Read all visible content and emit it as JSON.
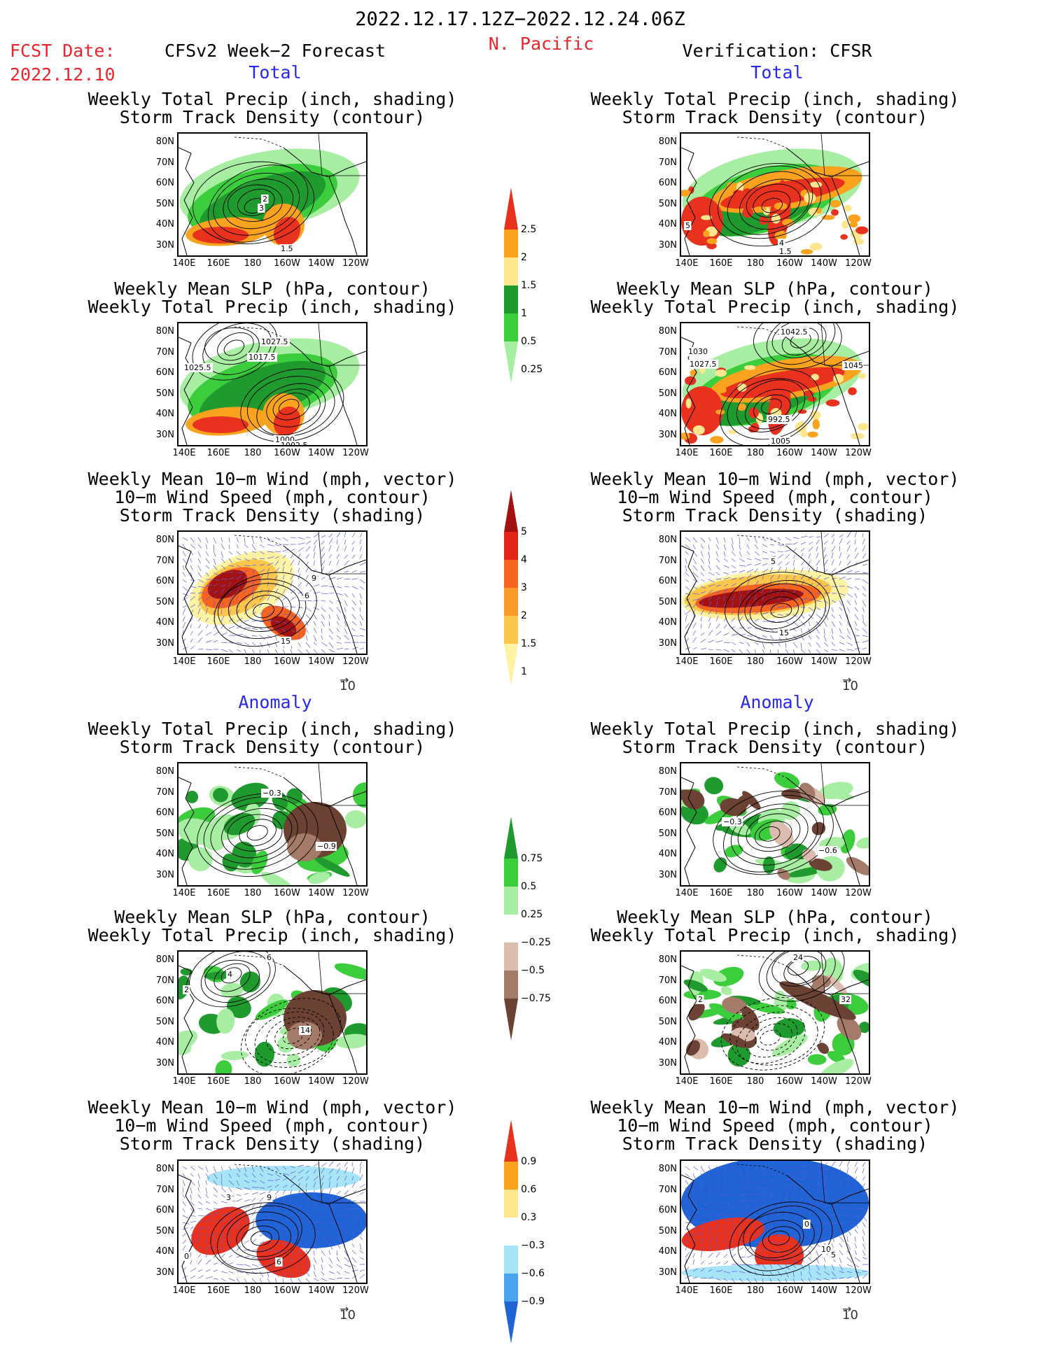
{
  "header": {
    "date_range": "2022.12.17.12Z−2022.12.24.06Z",
    "region": "N. Pacific",
    "fcst_label": "FCST Date:",
    "fcst_date": "2022.12.10",
    "forecast_title": "CFSv2 Week−2 Forecast",
    "verification_title": "Verification: CFSR"
  },
  "sections": {
    "total": "Total",
    "anomaly": "Anomaly"
  },
  "panel_titles": {
    "precip_storm": [
      "Weekly Total Precip (inch, shading)",
      "Storm Track Density (contour)"
    ],
    "slp_precip": [
      "Weekly Mean SLP (hPa, contour)",
      "Weekly Total Precip (inch, shading)"
    ],
    "wind_storm": [
      "Weekly Mean 10−m Wind (mph, vector)",
      "10−m Wind Speed (mph, contour)",
      "Storm Track Density (shading)"
    ]
  },
  "axes": {
    "lat": [
      "80N",
      "70N",
      "60N",
      "50N",
      "40N",
      "30N"
    ],
    "lon": [
      "140E",
      "160E",
      "180",
      "160W",
      "140W",
      "120W"
    ]
  },
  "vector_ref": "10",
  "colorbars": {
    "precip_total": {
      "labels": [
        "2.5",
        "2",
        "1.5",
        "1",
        "0.5",
        "0.25"
      ],
      "colors": [
        "#e8321e",
        "#fba31f",
        "#fde68e",
        "#1f9a2e",
        "#3ccd3c",
        "#a7eea3"
      ]
    },
    "storm_total": {
      "labels": [
        "5",
        "4",
        "3",
        "2",
        "1.5",
        "1"
      ],
      "colors": [
        "#a31212",
        "#e12618",
        "#f7641f",
        "#fb9a2b",
        "#fbc64a",
        "#fdf3a3"
      ]
    },
    "precip_anom": {
      "labels": [
        "0.75",
        "0.5",
        "0.25",
        "−0.25",
        "−0.5",
        "−0.75"
      ],
      "colors": [
        "#1f9a2e",
        "#3ccd3c",
        "#a7eea3",
        "#ffffff",
        "#dcbcae",
        "#a47a68",
        "#6b4233"
      ]
    },
    "storm_anom": {
      "labels": [
        "0.9",
        "0.6",
        "0.3",
        "−0.3",
        "−0.6",
        "−0.9"
      ],
      "colors": [
        "#e8321e",
        "#fba31f",
        "#fde68e",
        "#ffffff",
        "#a7e4f7",
        "#4aa3ee",
        "#1f63d4"
      ]
    }
  },
  "map_labels": {
    "fc_precip_total": [
      "2",
      "3",
      "1.5"
    ],
    "vf_precip_total": [
      "5",
      "4",
      "1.5"
    ],
    "fc_slp_total": [
      "1027.5",
      "1017.5",
      "1025.5",
      "1000",
      "1002.5"
    ],
    "vf_slp_total": [
      "1042.5",
      "1030",
      "1027.5",
      "1045",
      "992.5",
      "1005"
    ],
    "fc_wind_total": [
      "15",
      "9",
      "6"
    ],
    "vf_wind_total": [
      "15",
      "5"
    ],
    "fc_precip_anom": [
      "−0.3",
      "−0.9"
    ],
    "vf_precip_anom": [
      "−0.3",
      "−0.6"
    ],
    "fc_slp_anom": [
      "6",
      "4",
      "2",
      "14"
    ],
    "vf_slp_anom": [
      "24",
      "2",
      "32"
    ],
    "fc_wind_anom": [
      "3",
      "9",
      "6",
      "0"
    ],
    "vf_wind_anom": [
      "0",
      "10",
      "5"
    ]
  }
}
